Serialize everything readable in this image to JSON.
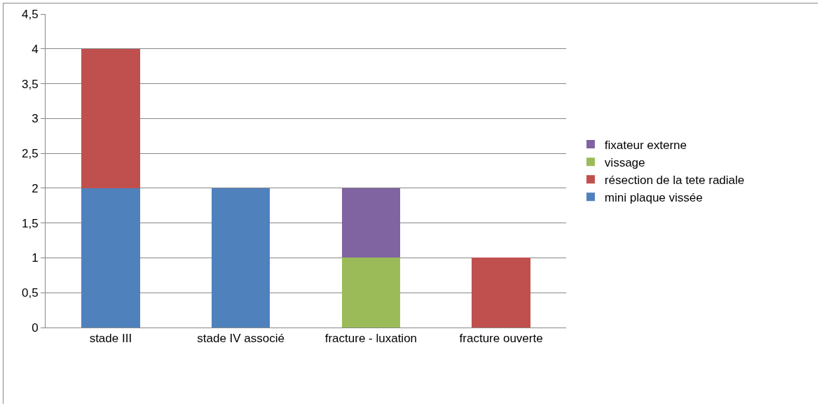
{
  "chart_data": {
    "type": "bar",
    "stacked": true,
    "categories": [
      "stade III",
      "stade IV associé",
      "fracture - luxation",
      "fracture ouverte"
    ],
    "series": [
      {
        "name": "mini plaque vissée",
        "color": "#4f81bd",
        "values": [
          2,
          2,
          null,
          null
        ]
      },
      {
        "name": "résection de la tete radiale",
        "color": "#c0504d",
        "values": [
          2,
          null,
          null,
          1
        ]
      },
      {
        "name": "vissage",
        "color": "#9bbb59",
        "values": [
          null,
          null,
          1,
          null
        ]
      },
      {
        "name": "fixateur externe",
        "color": "#8064a2",
        "values": [
          null,
          null,
          1,
          null
        ]
      }
    ],
    "ylim": [
      0,
      4.5
    ],
    "yticks": [
      0,
      {
        "value": 0.5,
        "label": "0,5"
      },
      1,
      {
        "value": 1.5,
        "label": "1,5"
      },
      2,
      {
        "value": 2.5,
        "label": "2,5"
      },
      3,
      {
        "value": 3.5,
        "label": "3,5"
      },
      4,
      {
        "value": 4.5,
        "label": "4,5"
      }
    ],
    "grid": "y",
    "legend": "right"
  }
}
